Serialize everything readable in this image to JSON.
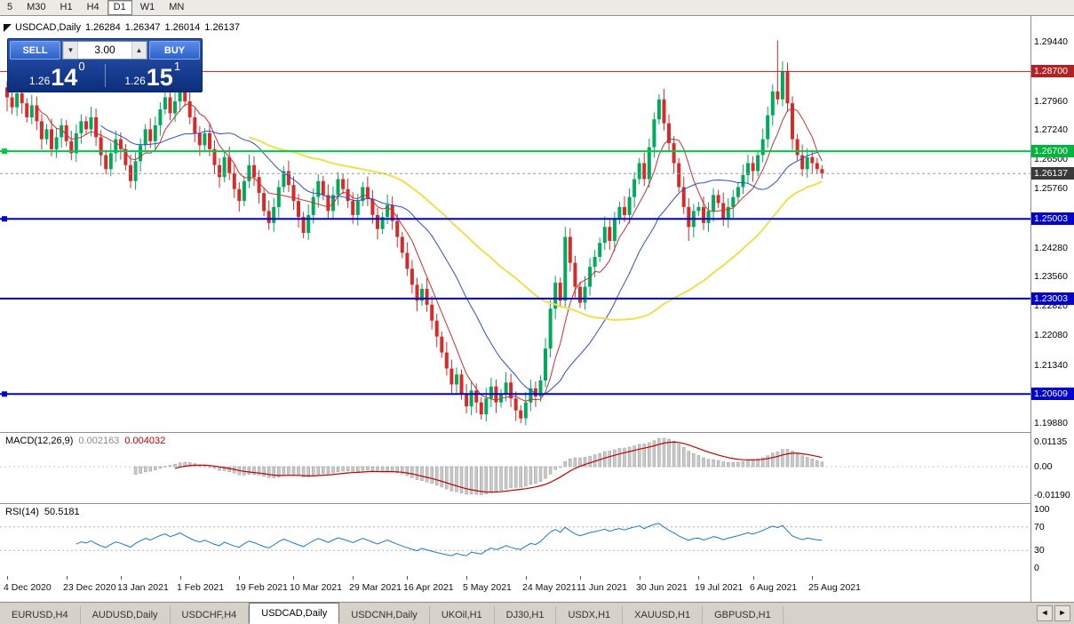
{
  "toolbar": {
    "timeframes": [
      "5",
      "M30",
      "H1",
      "H4",
      "D1",
      "W1",
      "MN"
    ],
    "active": "D1"
  },
  "chart": {
    "title": {
      "symbol": "USDCAD,Daily",
      "open": "1.26284",
      "high": "1.26347",
      "low": "1.26014",
      "close": "1.26137"
    },
    "trade_widget": {
      "sell_label": "SELL",
      "buy_label": "BUY",
      "volume": "3.00",
      "spin_down": "▼",
      "spin_up": "▲",
      "bid_prefix": "1.26",
      "bid_big": "14",
      "bid_sup": "0",
      "ask_prefix": "1.26",
      "ask_big": "15",
      "ask_sup": "1"
    }
  },
  "indicators": {
    "macd": {
      "label": "MACD(12,26,9)",
      "main_value": "0.002163",
      "signal_value": "0.004032",
      "axis_top": "0.01135",
      "axis_zero": "0.00",
      "axis_bottom": "-0.01190"
    },
    "rsi": {
      "label": "RSI(14)",
      "value": "50.5181",
      "axis_values": [
        100,
        70,
        30,
        0
      ]
    }
  },
  "chart_data": {
    "type": "candlestick",
    "symbol": "USDCAD",
    "timeframe": "Daily",
    "price_range_top": 1.3009,
    "price_range_bottom": 1.19658,
    "first_open": 1.283,
    "closes": [
      1.2805,
      1.278,
      1.2815,
      1.279,
      1.2755,
      1.2785,
      1.2745,
      1.27,
      1.2725,
      1.2675,
      1.2705,
      1.2735,
      1.2695,
      1.2665,
      1.2715,
      1.2745,
      1.2725,
      1.2755,
      1.2705,
      1.266,
      1.2625,
      1.2665,
      1.27,
      1.2675,
      1.2635,
      1.2595,
      1.2645,
      1.2685,
      1.2725,
      1.2695,
      1.2735,
      1.2775,
      1.2805,
      1.2765,
      1.2795,
      1.2835,
      1.2795,
      1.2755,
      1.2715,
      1.2685,
      1.2715,
      1.2675,
      1.2635,
      1.2605,
      1.2655,
      1.2615,
      1.2575,
      1.2545,
      1.2595,
      1.2635,
      1.2605,
      1.2565,
      1.252,
      1.249,
      1.253,
      1.258,
      1.262,
      1.2585,
      1.2545,
      1.2505,
      1.2465,
      1.251,
      1.2555,
      1.2595,
      1.256,
      1.252,
      1.256,
      1.26,
      1.2575,
      1.2545,
      1.251,
      1.2545,
      1.258,
      1.255,
      1.251,
      1.2475,
      1.2505,
      1.2535,
      1.2495,
      1.2455,
      1.2415,
      1.2375,
      1.2335,
      1.2295,
      1.2325,
      1.2285,
      1.2245,
      1.2205,
      1.2165,
      1.2125,
      1.2085,
      1.211,
      1.206,
      1.203,
      1.207,
      1.204,
      1.201,
      1.205,
      1.208,
      1.204,
      1.206,
      1.209,
      1.205,
      1.202,
      1.2,
      1.204,
      1.2075,
      1.2055,
      1.2095,
      1.2175,
      1.2275,
      1.234,
      1.2295,
      1.2455,
      1.239,
      1.233,
      1.229,
      1.233,
      1.238,
      1.2405,
      1.244,
      1.248,
      1.2445,
      1.25,
      1.253,
      1.251,
      1.2555,
      1.26,
      1.264,
      1.26,
      1.268,
      1.275,
      1.28,
      1.274,
      1.269,
      1.264,
      1.258,
      1.253,
      1.248,
      1.252,
      1.253,
      1.249,
      1.252,
      1.256,
      1.254,
      1.25,
      1.253,
      1.2555,
      1.258,
      1.261,
      1.264,
      1.262,
      1.266,
      1.27,
      1.276,
      1.282,
      1.28,
      1.287,
      1.279,
      1.27,
      1.266,
      1.2625,
      1.2655,
      1.264,
      1.2625,
      1.26137
    ],
    "wick_overrides": {
      "0": {
        "h": 1.2845,
        "l": 1.277
      },
      "35": {
        "h": 1.2858
      },
      "104": {
        "l": 1.1988
      },
      "113": {
        "h": 1.248
      },
      "138": {
        "l": 1.2445
      },
      "156": {
        "h": 1.2948
      },
      "157": {
        "h": 1.2895
      },
      "165": {
        "h": 1.26347,
        "l": 1.26014
      }
    },
    "colors": {
      "up": "#00A95C",
      "down": "#D62B2B",
      "macd_hist_fill": "#C9C9C9",
      "macd_hist_stroke": "#9A9A9A",
      "macd_signal": "#C00000",
      "rsi_line": "#1E78C8"
    },
    "moving_averages": [
      {
        "period": 7,
        "color": "#C83232",
        "width": 1
      },
      {
        "period": 20,
        "color": "#2E4FC8",
        "width": 1
      },
      {
        "period": 50,
        "color": "#EFE04B",
        "width": 2
      }
    ],
    "hlines": [
      {
        "price": 1.287,
        "color": "#B22222",
        "width": 1,
        "dash": false,
        "handles": false
      },
      {
        "price": 1.267,
        "color": "#00C84B",
        "width": 2,
        "dash": false,
        "handles": true
      },
      {
        "price": 1.26137,
        "color": "#999999",
        "width": 1,
        "dash": true,
        "handles": false
      },
      {
        "price": 1.25003,
        "color": "#0000C8",
        "width": 2,
        "dash": false,
        "handles": true
      },
      {
        "price": 1.23003,
        "color": "#0000C8",
        "width": 2,
        "dash": false,
        "handles": false
      },
      {
        "price": 1.20609,
        "color": "#0000C8",
        "width": 2,
        "dash": false,
        "handles": true
      }
    ],
    "price_axis_ticks": [
      {
        "label": "1.29440",
        "price": 1.2944
      },
      {
        "label": "1.27960",
        "price": 1.2796
      },
      {
        "label": "1.27240",
        "price": 1.2724
      },
      {
        "label": "1.26500",
        "price": 1.265
      },
      {
        "label": "1.25760",
        "price": 1.2576
      },
      {
        "label": "1.24280",
        "price": 1.2428
      },
      {
        "label": "1.23560",
        "price": 1.2356
      },
      {
        "label": "1.22820",
        "price": 1.2282
      },
      {
        "label": "1.22080",
        "price": 1.2208
      },
      {
        "label": "1.21340",
        "price": 1.2134
      },
      {
        "label": "1.19880",
        "price": 1.1988
      }
    ],
    "price_badges": [
      {
        "label": "1.28700",
        "price": 1.287,
        "bg": "#B22222",
        "fg": "#ffffff",
        "name": "resistance-level"
      },
      {
        "label": "1.26700",
        "price": 1.267,
        "bg": "#00B43C",
        "fg": "#ffffff",
        "name": "green-level"
      },
      {
        "label": "1.26137",
        "price": 1.26137,
        "bg": "#3A3A3A",
        "fg": "#ffffff",
        "name": "current-price"
      },
      {
        "label": "1.25003",
        "price": 1.25003,
        "bg": "#0000C8",
        "fg": "#ffffff",
        "name": "support-level-1"
      },
      {
        "label": "1.23003",
        "price": 1.23003,
        "bg": "#0000C8",
        "fg": "#ffffff",
        "name": "support-level-2"
      },
      {
        "label": "1.20609",
        "price": 1.20609,
        "bg": "#0000C8",
        "fg": "#ffffff",
        "name": "support-level-3"
      }
    ],
    "date_labels": [
      "4 Dec 2020",
      "23 Dec 2020",
      "13 Jan 2021",
      "1 Feb 2021",
      "19 Feb 2021",
      "10 Mar 2021",
      "29 Mar 2021",
      "16 Apr 2021",
      "5 May 2021",
      "24 May 2021",
      "11 Jun 2021",
      "30 Jun 2021",
      "19 Jul 2021",
      "6 Aug 2021",
      "25 Aug 2021"
    ],
    "rsi_levels": [
      70,
      30
    ]
  },
  "tabs": {
    "items": [
      "EURUSD,H4",
      "AUDUSD,Daily",
      "USDCHF,H4",
      "USDCAD,Daily",
      "USDCNH,Daily",
      "UKOil,H1",
      "DJ30,H1",
      "USDX,H1",
      "XAUUSD,H1",
      "GBPUSD,H1"
    ],
    "active_index": 3,
    "scroll_left": "◄",
    "scroll_right": "►"
  }
}
